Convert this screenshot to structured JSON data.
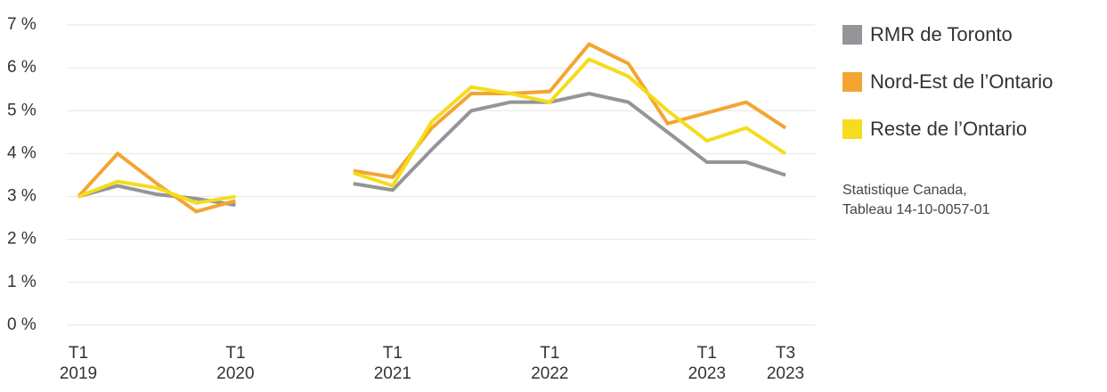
{
  "chart_data": {
    "type": "line",
    "categories": [
      "T1 2019",
      null,
      null,
      null,
      "T1 2020",
      null,
      null,
      null,
      "T1 2021",
      null,
      null,
      null,
      "T1 2022",
      null,
      null,
      null,
      "T1 2023",
      null,
      "T3 2023"
    ],
    "series": [
      {
        "name": "RMR de Toronto",
        "color": "#939598",
        "values": [
          3.0,
          3.25,
          3.05,
          2.95,
          2.8,
          null,
          null,
          3.3,
          3.15,
          4.1,
          5.0,
          5.2,
          5.2,
          5.4,
          5.2,
          4.5,
          3.8,
          3.8,
          3.5
        ]
      },
      {
        "name": "Nord-Est de l’Ontario",
        "color": "#f3a532",
        "values": [
          3.0,
          4.0,
          3.3,
          2.65,
          2.9,
          null,
          null,
          3.6,
          3.45,
          4.6,
          5.4,
          5.4,
          5.45,
          6.55,
          6.1,
          4.7,
          4.95,
          5.2,
          4.6
        ]
      },
      {
        "name": "Reste de l’Ontario",
        "color": "#f5dc1c",
        "values": [
          3.0,
          3.35,
          3.2,
          2.85,
          3.0,
          null,
          null,
          3.55,
          3.25,
          4.75,
          5.55,
          5.4,
          5.2,
          6.2,
          5.8,
          5.0,
          4.3,
          4.6,
          4.0
        ]
      }
    ],
    "ylim": [
      0,
      7
    ],
    "yticks": [
      {
        "value": 0,
        "label": "0 %"
      },
      {
        "value": 1,
        "label": "1 %"
      },
      {
        "value": 2,
        "label": "2 %"
      },
      {
        "value": 3,
        "label": "3 %"
      },
      {
        "value": 4,
        "label": "4 %"
      },
      {
        "value": 5,
        "label": "5 %"
      },
      {
        "value": 6,
        "label": "6 %"
      },
      {
        "value": 7,
        "label": "7 %"
      }
    ],
    "grid": true,
    "legend": "right",
    "source": [
      "Statistique Canada,",
      "Tableau 14-10-0057-01"
    ]
  }
}
